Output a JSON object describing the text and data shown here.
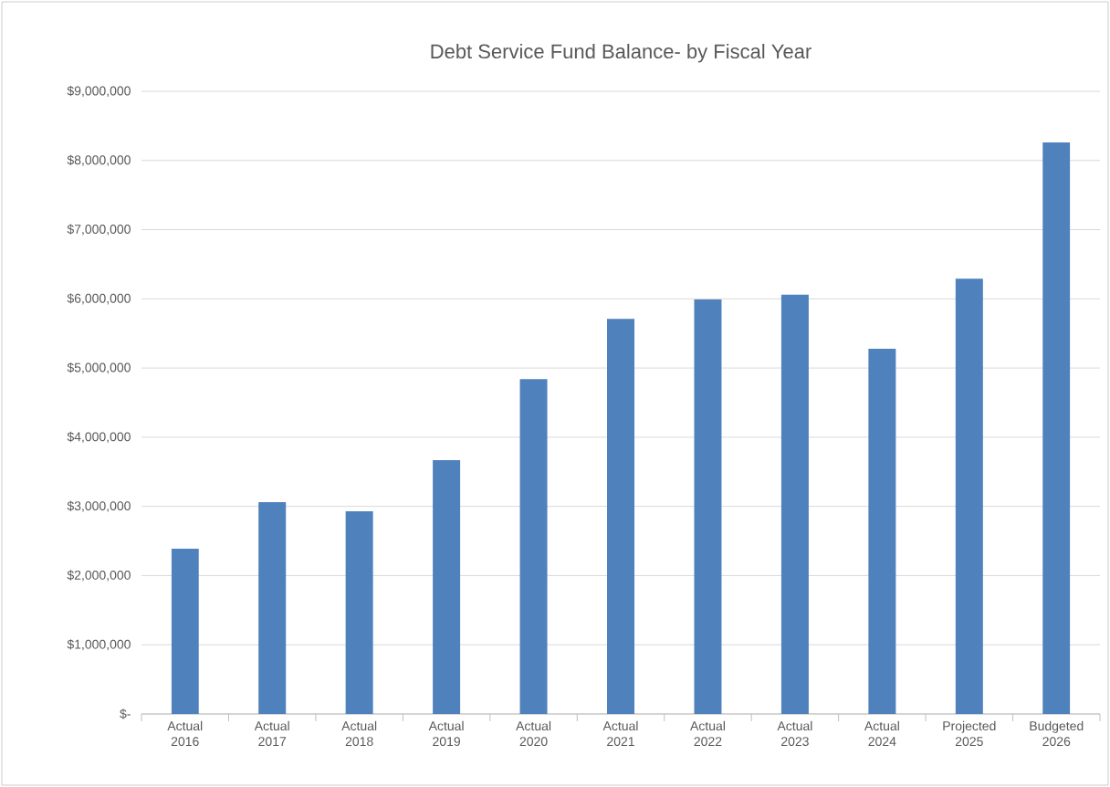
{
  "chart_data": {
    "type": "bar",
    "title": "Debt Service Fund Balance- by Fiscal Year",
    "categories": [
      "Actual 2016",
      "Actual 2017",
      "Actual 2018",
      "Actual 2019",
      "Actual 2020",
      "Actual 2021",
      "Actual 2022",
      "Actual 2023",
      "Actual 2024",
      "Projected 2025",
      "Budgeted 2026"
    ],
    "values": [
      2390000,
      3060000,
      2930000,
      3670000,
      4840000,
      5710000,
      5990000,
      6060000,
      5280000,
      6290000,
      8260000
    ],
    "color": "#4f81bd",
    "ylim": [
      0,
      9000000
    ],
    "yticks": [
      {
        "value": 0,
        "label": "$-"
      },
      {
        "value": 1000000,
        "label": "$1,000,000"
      },
      {
        "value": 2000000,
        "label": "$2,000,000"
      },
      {
        "value": 3000000,
        "label": "$3,000,000"
      },
      {
        "value": 4000000,
        "label": "$4,000,000"
      },
      {
        "value": 5000000,
        "label": "$5,000,000"
      },
      {
        "value": 6000000,
        "label": "$6,000,000"
      },
      {
        "value": 7000000,
        "label": "$7,000,000"
      },
      {
        "value": 8000000,
        "label": "$8,000,000"
      },
      {
        "value": 9000000,
        "label": "$9,000,000"
      }
    ],
    "grid": "y"
  }
}
